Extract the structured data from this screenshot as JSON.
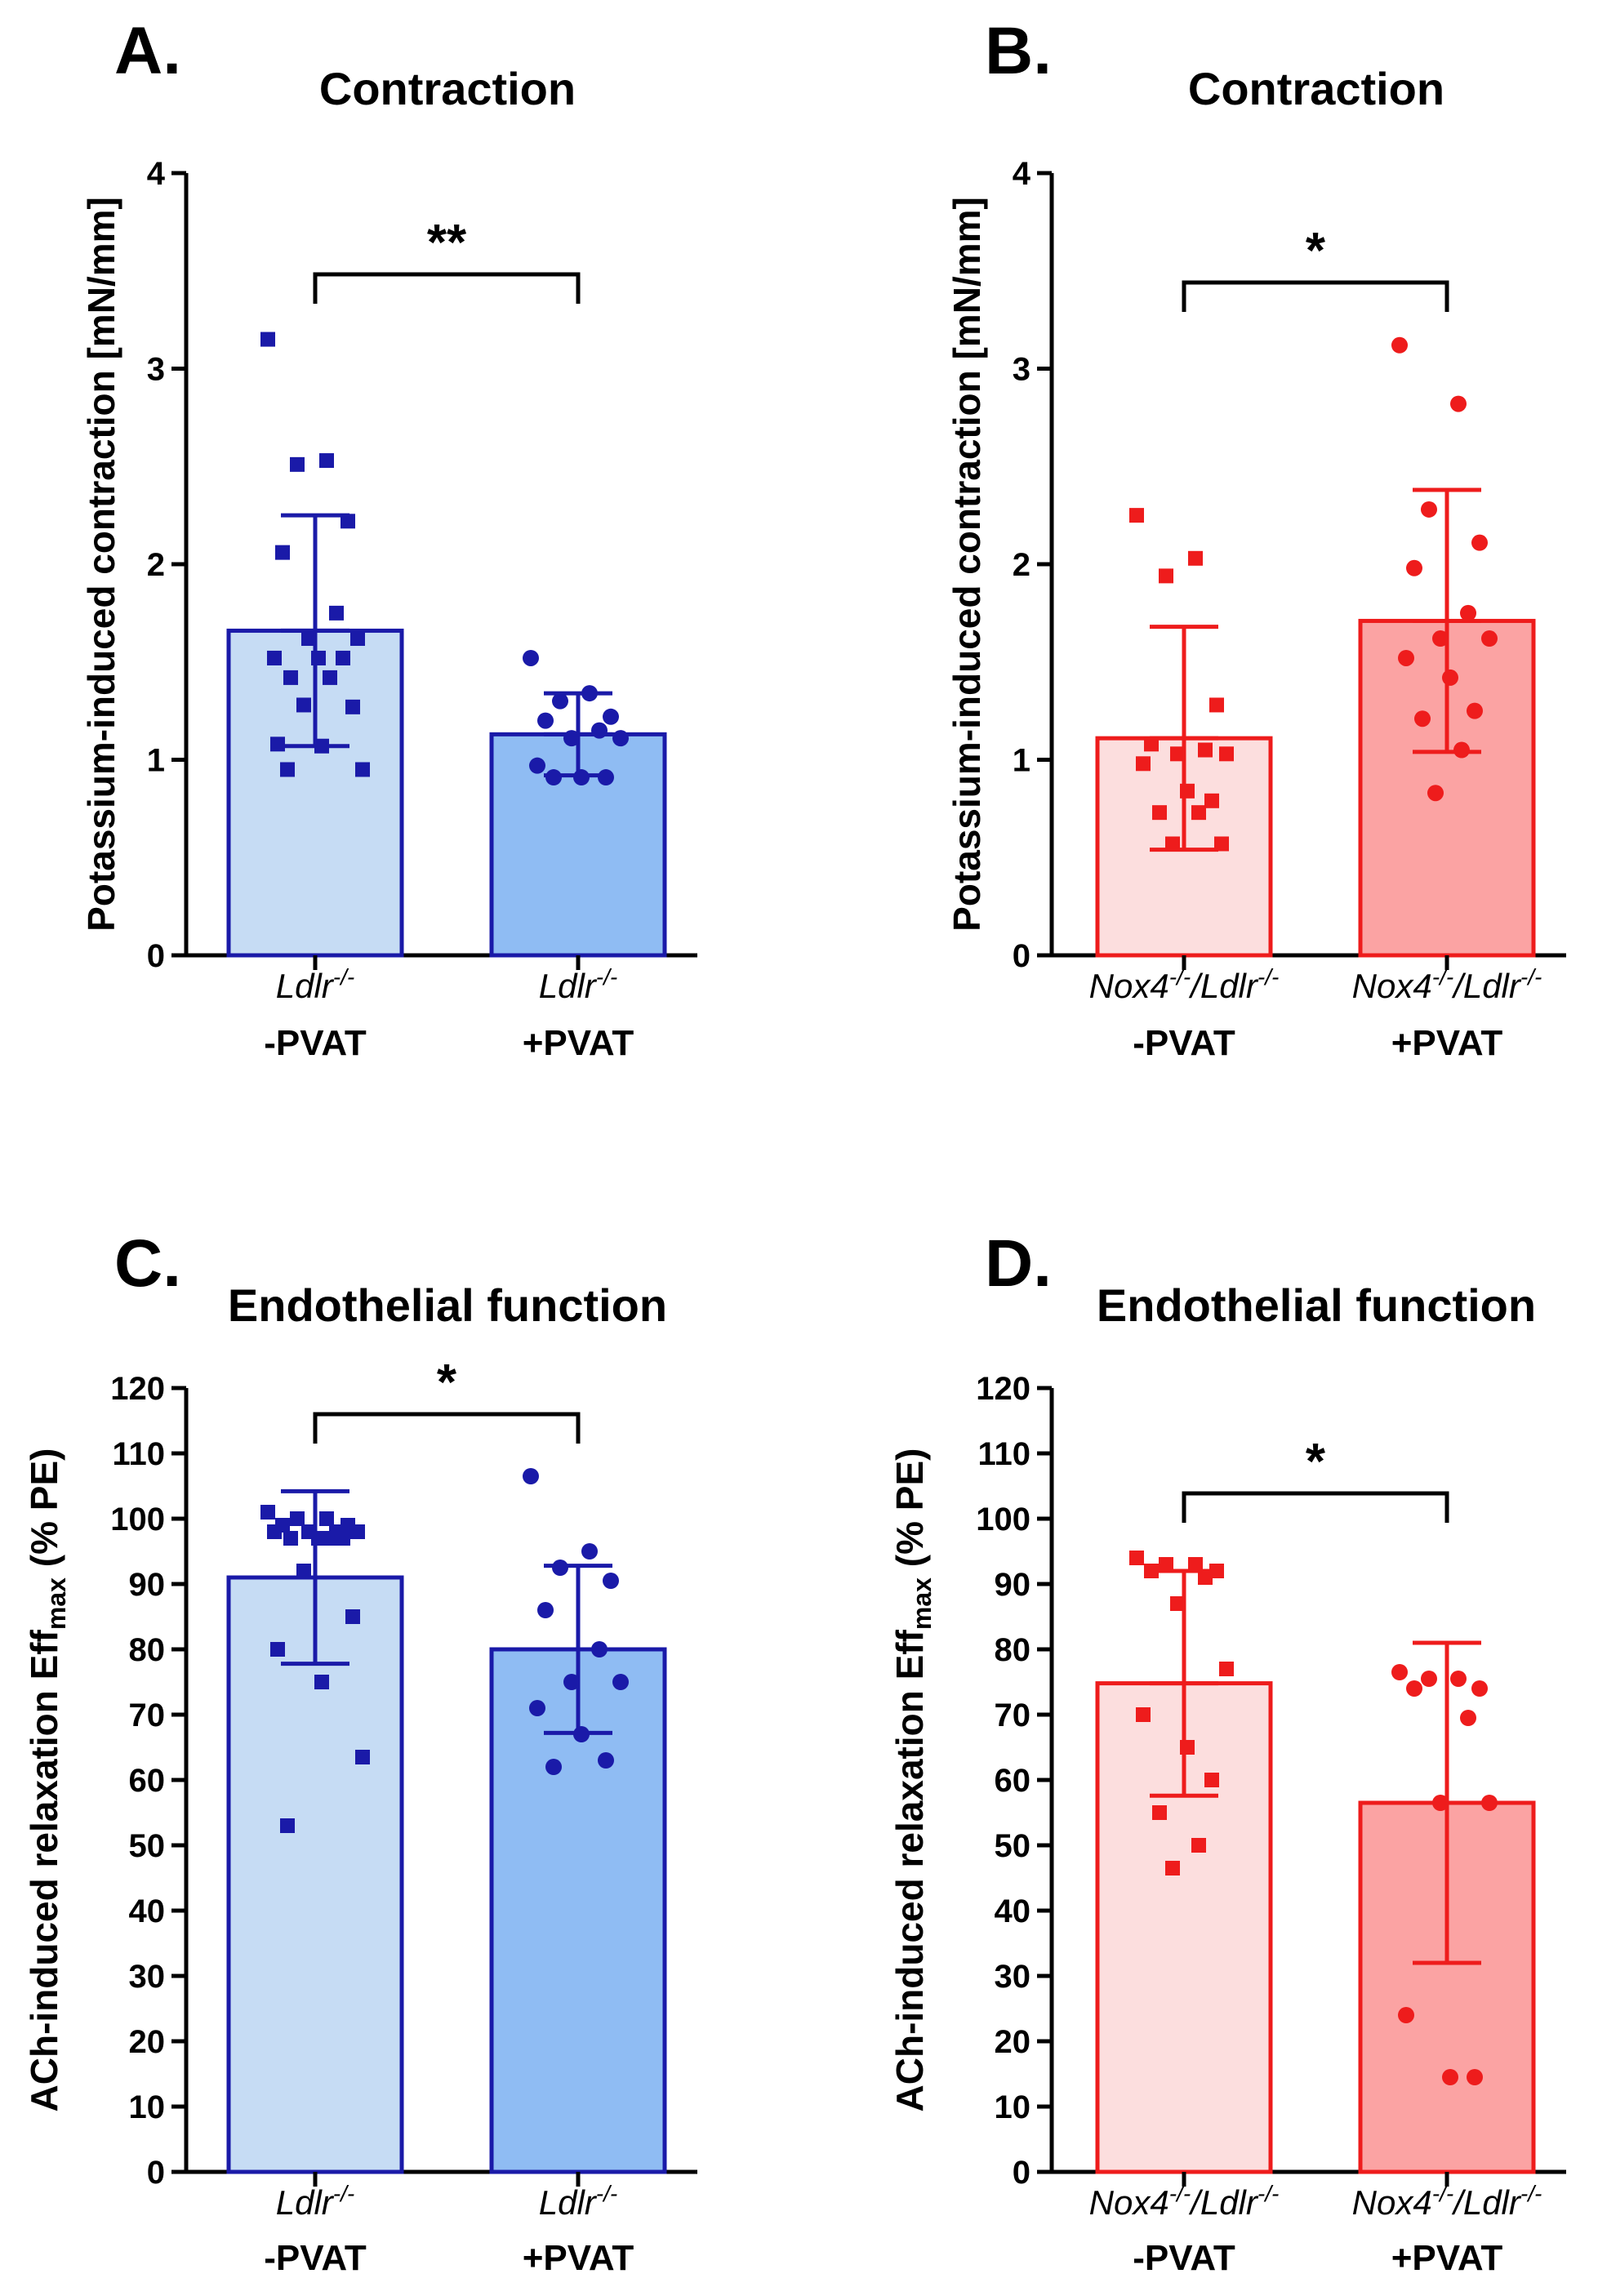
{
  "figure": {
    "panels": [
      {
        "letter": "A."
      },
      {
        "letter": "B."
      },
      {
        "letter": "C."
      },
      {
        "letter": "D."
      }
    ]
  },
  "chart_data": [
    {
      "panel": "A.",
      "type": "bar",
      "title": "Contraction",
      "ylabel": "Potassium-induced contraction [mN/mm]",
      "ylim": [
        0,
        4
      ],
      "yticks": [
        0,
        1,
        2,
        3,
        4
      ],
      "significance": "**",
      "colors": {
        "stroke": "#1a1aa8",
        "fills": [
          "#c6dcf4",
          "#8fbcf3"
        ]
      },
      "marker": "square",
      "categories": [
        {
          "name": "Ldlr",
          "sup": "-/-",
          "suffix": "",
          "condition": "-PVAT"
        },
        {
          "name": "Ldlr",
          "sup": "-/-",
          "suffix": "",
          "condition": "+PVAT"
        }
      ],
      "series": [
        {
          "name": "Ldlr-/- -PVAT",
          "mean": 1.66,
          "sd": 0.59,
          "marker": "square",
          "points": [
            3.15,
            2.53,
            2.51,
            2.22,
            2.06,
            1.75,
            1.62,
            1.62,
            1.52,
            1.52,
            1.52,
            1.42,
            1.42,
            1.28,
            1.27,
            1.08,
            1.07,
            0.95,
            0.95
          ]
        },
        {
          "name": "Ldlr-/- +PVAT",
          "mean": 1.13,
          "sd": 0.21,
          "marker": "circle",
          "points": [
            1.52,
            1.34,
            1.3,
            1.22,
            1.2,
            1.15,
            1.11,
            1.11,
            0.97,
            0.91,
            0.91,
            0.91
          ]
        }
      ]
    },
    {
      "panel": "B.",
      "type": "bar",
      "title": "Contraction",
      "ylabel": "Potassium-induced contraction [mN/mm]",
      "ylim": [
        0,
        4
      ],
      "yticks": [
        0,
        1,
        2,
        3,
        4
      ],
      "significance": "*",
      "colors": {
        "stroke": "#ee1c1c",
        "fills": [
          "#fcdede",
          "#fba3a3"
        ]
      },
      "marker": "square",
      "categories": [
        {
          "name": "Nox4",
          "sup": "-/-",
          "suffix": "/Ldlr",
          "sup2": "-/-",
          "condition": "-PVAT"
        },
        {
          "name": "Nox4",
          "sup": "-/-",
          "suffix": "/Ldlr",
          "sup2": "-/-",
          "condition": "+PVAT"
        }
      ],
      "series": [
        {
          "name": "Nox4-/-/Ldlr-/- -PVAT",
          "mean": 1.11,
          "sd": 0.57,
          "marker": "square",
          "points": [
            2.25,
            2.03,
            1.94,
            1.28,
            1.08,
            1.05,
            1.03,
            1.03,
            0.98,
            0.84,
            0.79,
            0.73,
            0.73,
            0.57,
            0.57
          ]
        },
        {
          "name": "Nox4-/-/Ldlr-/- +PVAT",
          "mean": 1.71,
          "sd": 0.67,
          "marker": "circle",
          "points": [
            3.12,
            2.82,
            2.28,
            2.11,
            1.98,
            1.75,
            1.62,
            1.62,
            1.52,
            1.42,
            1.25,
            1.21,
            1.05,
            0.83
          ]
        }
      ]
    },
    {
      "panel": "C.",
      "type": "bar",
      "title": "Endothelial function",
      "ylabel": "ACh-induced relaxation Eff",
      "ylabel_sub": "max",
      "ylabel_suffix": " (% PE)",
      "ylim": [
        0,
        120
      ],
      "yticks": [
        0,
        10,
        20,
        30,
        40,
        50,
        60,
        70,
        80,
        90,
        100,
        110,
        120
      ],
      "significance": "*",
      "colors": {
        "stroke": "#1a1aa8",
        "fills": [
          "#c6dcf4",
          "#8fbcf3"
        ]
      },
      "categories": [
        {
          "name": "Ldlr",
          "sup": "-/-",
          "suffix": "",
          "condition": "-PVAT"
        },
        {
          "name": "Ldlr",
          "sup": "-/-",
          "suffix": "",
          "condition": "+PVAT"
        }
      ],
      "series": [
        {
          "name": "Ldlr-/- -PVAT",
          "mean": 91.0,
          "sd": 13.2,
          "marker": "square",
          "points": [
            101,
            100,
            100,
            99,
            99,
            98,
            98,
            98,
            98,
            97,
            97,
            97,
            97,
            92,
            85,
            80,
            75,
            63.5,
            53
          ]
        },
        {
          "name": "Ldlr-/- +PVAT",
          "mean": 80.0,
          "sd": 12.8,
          "marker": "circle",
          "points": [
            106.5,
            95,
            92.5,
            90.5,
            86,
            80,
            75,
            75,
            71,
            67,
            63,
            62
          ]
        }
      ]
    },
    {
      "panel": "D.",
      "type": "bar",
      "title": "Endothelial function",
      "ylabel": "ACh-induced relaxation Eff",
      "ylabel_sub": "max",
      "ylabel_suffix": " (% PE)",
      "ylim": [
        0,
        120
      ],
      "yticks": [
        0,
        10,
        20,
        30,
        40,
        50,
        60,
        70,
        80,
        90,
        100,
        110,
        120
      ],
      "significance": "*",
      "colors": {
        "stroke": "#ee1c1c",
        "fills": [
          "#fcdede",
          "#fba3a3"
        ]
      },
      "categories": [
        {
          "name": "Nox4",
          "sup": "-/-",
          "suffix": "/Ldlr",
          "sup2": "-/-",
          "condition": "-PVAT"
        },
        {
          "name": "Nox4",
          "sup": "-/-",
          "suffix": "/Ldlr",
          "sup2": "-/-",
          "condition": "+PVAT"
        }
      ],
      "series": [
        {
          "name": "Nox4-/-/Ldlr-/- -PVAT",
          "mean": 74.8,
          "sd": 17.2,
          "marker": "square",
          "points": [
            94,
            93,
            93,
            92,
            92,
            91,
            87,
            77,
            70,
            65,
            60,
            55,
            50,
            46.5
          ]
        },
        {
          "name": "Nox4-/-/Ldlr-/- +PVAT",
          "mean": 56.5,
          "sd": 24.5,
          "marker": "circle",
          "points": [
            76.5,
            75.5,
            75.5,
            74,
            74,
            69.5,
            56.5,
            56.5,
            24,
            14.5,
            14.5
          ]
        }
      ]
    }
  ]
}
